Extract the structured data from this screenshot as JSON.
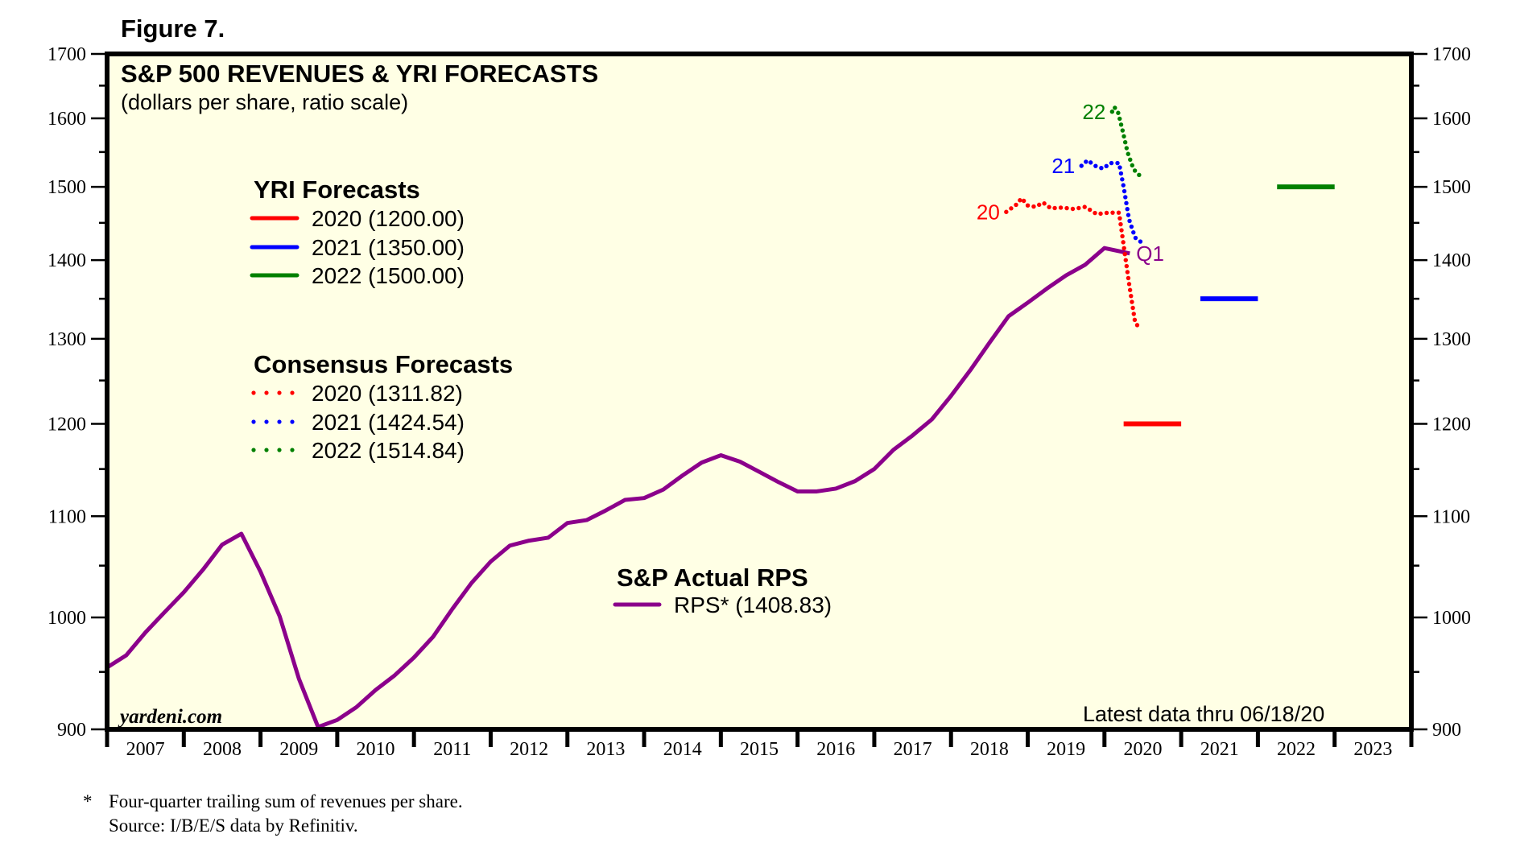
{
  "figure_label": "Figure 7.",
  "footnotes": {
    "asterisk": "*",
    "line1": "Four-quarter trailing sum of revenues per share.",
    "line2": "Source: I/B/E/S data by Refinitiv."
  },
  "watermark": "yardeni.com",
  "latest_note": "Latest data thru 06/18/20",
  "colors": {
    "background": "#FFFFE5",
    "rps": "#8B008B",
    "y2020": "#FF0000",
    "y2021": "#0000FF",
    "y2022": "#008000"
  },
  "chart_data": {
    "type": "line",
    "title": "S&P 500 REVENUES & YRI FORECASTS",
    "subtitle": "(dollars per share, ratio scale)",
    "xlabel": "",
    "ylabel": "",
    "yscale": "log",
    "ylim": [
      900,
      1700
    ],
    "xlim": [
      2007,
      2024
    ],
    "grid": false,
    "y_ticks_major": [
      "900",
      "1000",
      "1100",
      "1200",
      "1300",
      "1400",
      "1500",
      "1600",
      "1700"
    ],
    "y_ticks_minor": [
      950,
      1050,
      1150,
      1250,
      1350,
      1450,
      1550,
      1650
    ],
    "x_tick_labels": [
      "2007",
      "2008",
      "2009",
      "2010",
      "2011",
      "2012",
      "2013",
      "2014",
      "2015",
      "2016",
      "2017",
      "2018",
      "2019",
      "2020",
      "2021",
      "2022",
      "2023"
    ],
    "legends": {
      "yri": {
        "heading": "YRI Forecasts",
        "items": [
          {
            "label": "2020 (1200.00)",
            "color_key": "y2020"
          },
          {
            "label": "2021 (1350.00)",
            "color_key": "y2021"
          },
          {
            "label": "2022 (1500.00)",
            "color_key": "y2022"
          }
        ]
      },
      "consensus": {
        "heading": "Consensus Forecasts",
        "items": [
          {
            "label": "2020 (1311.82)",
            "color_key": "y2020"
          },
          {
            "label": "2021 (1424.54)",
            "color_key": "y2021"
          },
          {
            "label": "2022 (1514.84)",
            "color_key": "y2022"
          }
        ]
      },
      "actual": {
        "heading": "S&P Actual RPS",
        "items": [
          {
            "label": "RPS* (1408.83)",
            "color_key": "rps"
          }
        ]
      }
    },
    "series": [
      {
        "name": "RPS*",
        "style": "solid",
        "color_key": "rps",
        "end_label": "Q1",
        "x": [
          2007.0,
          2007.25,
          2007.5,
          2007.75,
          2008.0,
          2008.25,
          2008.5,
          2008.75,
          2009.0,
          2009.25,
          2009.5,
          2009.75,
          2010.0,
          2010.25,
          2010.5,
          2010.75,
          2011.0,
          2011.25,
          2011.5,
          2011.75,
          2012.0,
          2012.25,
          2012.5,
          2012.75,
          2013.0,
          2013.25,
          2013.5,
          2013.75,
          2014.0,
          2014.25,
          2014.5,
          2014.75,
          2015.0,
          2015.25,
          2015.5,
          2015.75,
          2016.0,
          2016.25,
          2016.5,
          2016.75,
          2017.0,
          2017.25,
          2017.5,
          2017.75,
          2018.0,
          2018.25,
          2018.5,
          2018.75,
          2019.0,
          2019.25,
          2019.5,
          2019.75,
          2020.0,
          2020.33
        ],
        "values": [
          954,
          965,
          986,
          1005,
          1024,
          1046,
          1071,
          1082,
          1044,
          1001,
          944,
          902,
          908,
          919,
          934,
          947,
          963,
          982,
          1008,
          1033,
          1054,
          1070,
          1075,
          1078,
          1093,
          1096,
          1106,
          1117,
          1119,
          1128,
          1143,
          1157,
          1165,
          1158,
          1147,
          1136,
          1126,
          1126,
          1129,
          1137,
          1150,
          1171,
          1187,
          1205,
          1232,
          1262,
          1295,
          1328,
          1345,
          1363,
          1380,
          1394,
          1416,
          1408.83
        ]
      },
      {
        "name": "Consensus 2020",
        "style": "dotted",
        "color_key": "y2020",
        "start_label": "20",
        "x": [
          2018.72,
          2018.85,
          2018.92,
          2019.0,
          2019.1,
          2019.2,
          2019.3,
          2019.45,
          2019.6,
          2019.75,
          2019.9,
          2020.05,
          2020.19,
          2020.25,
          2020.32,
          2020.4,
          2020.47
        ],
        "values": [
          1465,
          1475,
          1484,
          1474,
          1472,
          1478,
          1470,
          1471,
          1469,
          1472,
          1462,
          1464,
          1464,
          1420,
          1370,
          1320,
          1311.82
        ]
      },
      {
        "name": "Consensus 2021",
        "style": "dotted",
        "color_key": "y2021",
        "start_label": "21",
        "x": [
          2019.7,
          2019.78,
          2019.88,
          2019.98,
          2020.08,
          2020.19,
          2020.25,
          2020.32,
          2020.4,
          2020.47
        ],
        "values": [
          1530,
          1538,
          1530,
          1526,
          1534,
          1534,
          1500,
          1455,
          1430,
          1424.54
        ]
      },
      {
        "name": "Consensus 2022",
        "style": "dotted",
        "color_key": "y2022",
        "start_label": "22",
        "x": [
          2020.1,
          2020.13,
          2020.18,
          2020.24,
          2020.3,
          2020.38,
          2020.47
        ],
        "values": [
          1610,
          1617,
          1608,
          1580,
          1550,
          1525,
          1514.84
        ]
      },
      {
        "name": "YRI 2020",
        "style": "bar",
        "color_key": "y2020",
        "x": [
          2020.25,
          2021.0
        ],
        "values": [
          1200,
          1200
        ]
      },
      {
        "name": "YRI 2021",
        "style": "bar",
        "color_key": "y2021",
        "x": [
          2021.25,
          2022.0
        ],
        "values": [
          1350,
          1350
        ]
      },
      {
        "name": "YRI 2022",
        "style": "bar",
        "color_key": "y2022",
        "x": [
          2022.25,
          2023.0
        ],
        "values": [
          1500,
          1500
        ]
      }
    ]
  }
}
